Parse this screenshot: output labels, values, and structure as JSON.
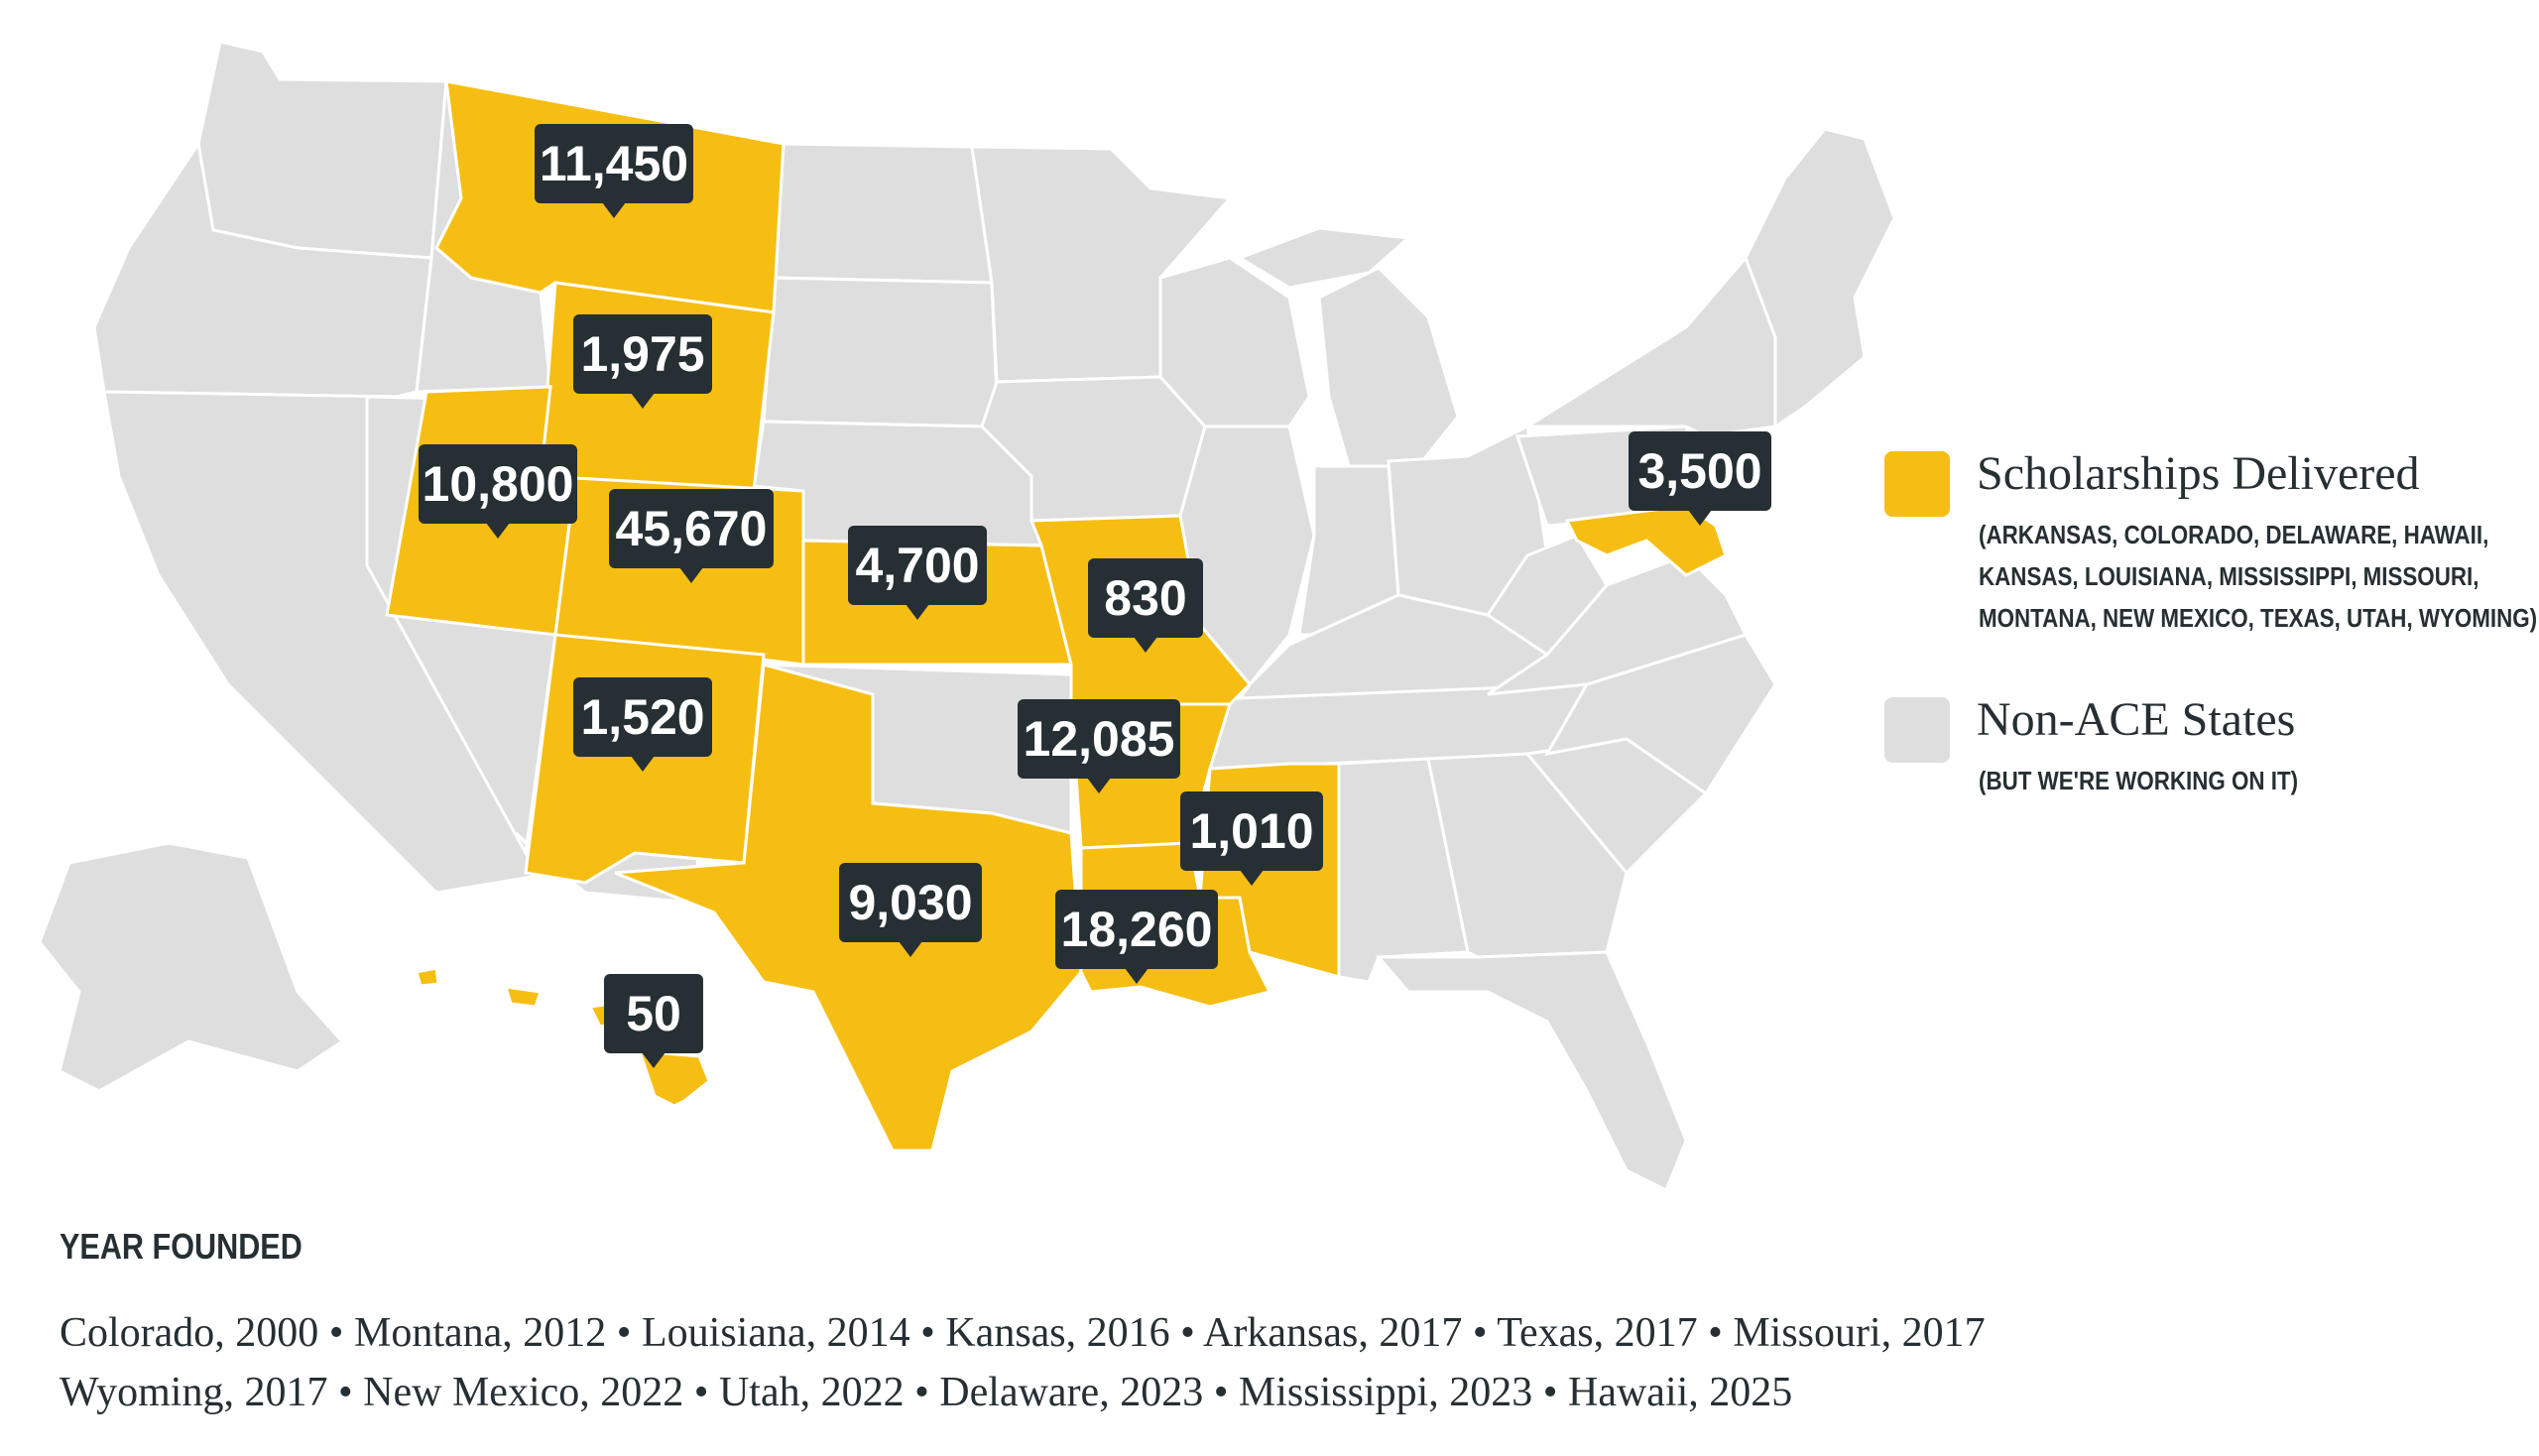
{
  "colors": {
    "ace_state": "#f6be12",
    "non_ace_state": "#dedede",
    "badge": "#262f33",
    "text": "#262f33"
  },
  "badges": {
    "montana": "11,450",
    "wyoming": "1,975",
    "utah": "10,800",
    "colorado": "45,670",
    "kansas": "4,700",
    "missouri": "830",
    "delaware": "3,500",
    "new_mexico": "1,520",
    "arkansas": "12,085",
    "mississippi": "1,010",
    "texas": "9,030",
    "louisiana": "18,260",
    "hawaii": "50"
  },
  "legend": {
    "scholarships": {
      "title": "Scholarships Delivered",
      "lines": [
        "(ARKANSAS, COLORADO, DELAWARE, HAWAII,",
        "KANSAS, LOUISIANA, MISSISSIPPI, MISSOURI,",
        "MONTANA, NEW MEXICO, TEXAS, UTAH, WYOMING)"
      ]
    },
    "non_ace": {
      "title": "Non-ACE States",
      "lines": [
        "(BUT WE'RE WORKING ON IT)"
      ]
    }
  },
  "footer": {
    "heading": "YEAR FOUNDED",
    "line1": "Colorado, 2000  • Montana, 2012 • Louisiana, 2014 • Kansas, 2016 • Arkansas, 2017 • Texas, 2017 • Missouri, 2017",
    "line2": "Wyoming, 2017 • New Mexico, 2022 • Utah, 2022 • Delaware, 2023 • Mississippi, 2023 • Hawaii, 2025"
  }
}
